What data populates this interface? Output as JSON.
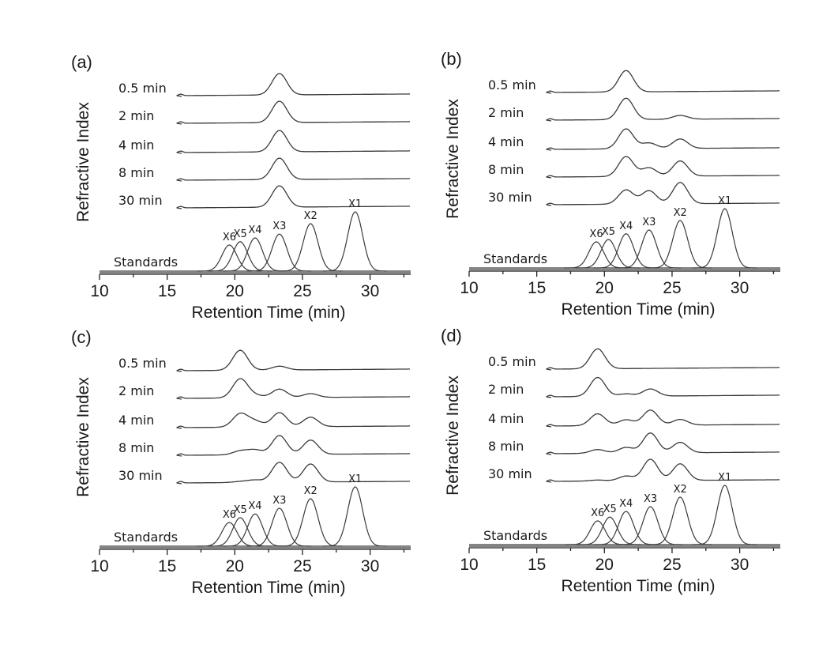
{
  "figure": {
    "panels": [
      "(a)",
      "(b)",
      "(c)",
      "(d)"
    ]
  },
  "chart_data": [
    {
      "panel": "(a)",
      "type": "line",
      "xlabel": "Retention Time (min)",
      "ylabel": "Refractive Index",
      "xlim": [
        10,
        33
      ],
      "xticks": [
        10,
        15,
        20,
        25,
        30
      ],
      "peak_names": [
        "X6",
        "X5",
        "X4",
        "X3",
        "X2",
        "X1"
      ],
      "peak_positions": [
        19.6,
        20.4,
        21.5,
        23.3,
        25.6,
        28.9
      ],
      "standards_label": "Standards",
      "standards_heights": [
        0.55,
        0.62,
        0.7,
        0.78,
        1.0,
        1.25
      ],
      "series": [
        {
          "name": "0.5 min",
          "peaks": [
            0,
            0,
            0,
            0.45,
            0,
            0
          ]
        },
        {
          "name": "2 min",
          "peaks": [
            0,
            0,
            0,
            0.45,
            0,
            0
          ]
        },
        {
          "name": "4 min",
          "peaks": [
            0,
            0,
            0,
            0.45,
            0,
            0
          ]
        },
        {
          "name": "8 min",
          "peaks": [
            0,
            0,
            0,
            0.45,
            0,
            0
          ]
        },
        {
          "name": "30 min",
          "peaks": [
            0,
            0,
            0,
            0.45,
            0,
            0
          ]
        }
      ]
    },
    {
      "panel": "(b)",
      "type": "line",
      "xlabel": "Retention Time (min)",
      "ylabel": "Refractive Index",
      "xlim": [
        10,
        33
      ],
      "xticks": [
        10,
        15,
        20,
        25,
        30
      ],
      "peak_names": [
        "X6",
        "X5",
        "X4",
        "X3",
        "X2",
        "X1"
      ],
      "peak_positions": [
        19.4,
        20.3,
        21.6,
        23.3,
        25.6,
        28.9
      ],
      "standards_label": "Standards",
      "standards_heights": [
        0.55,
        0.6,
        0.72,
        0.8,
        1.0,
        1.25
      ],
      "series": [
        {
          "name": "0.5 min",
          "peaks": [
            0,
            0,
            0.45,
            0,
            0,
            0
          ]
        },
        {
          "name": "2 min",
          "peaks": [
            0,
            0,
            0.45,
            0,
            0.08,
            0
          ]
        },
        {
          "name": "4 min",
          "peaks": [
            0,
            0,
            0.42,
            0.12,
            0.2,
            0
          ]
        },
        {
          "name": "8 min",
          "peaks": [
            0,
            0,
            0.42,
            0.18,
            0.32,
            0
          ]
        },
        {
          "name": "30 min",
          "peaks": [
            0,
            0,
            0.3,
            0.28,
            0.45,
            0
          ]
        }
      ]
    },
    {
      "panel": "(c)",
      "type": "line",
      "xlabel": "Retention Time (min)",
      "ylabel": "Refractive Index",
      "xlim": [
        10,
        33
      ],
      "xticks": [
        10,
        15,
        20,
        25,
        30
      ],
      "peak_names": [
        "X6",
        "X5",
        "X4",
        "X3",
        "X2",
        "X1"
      ],
      "peak_positions": [
        19.6,
        20.4,
        21.5,
        23.3,
        25.6,
        28.9
      ],
      "standards_label": "Standards",
      "standards_heights": [
        0.5,
        0.6,
        0.68,
        0.8,
        1.0,
        1.25
      ],
      "series": [
        {
          "name": "0.5 min",
          "peaks": [
            0,
            0.42,
            0,
            0.08,
            0,
            0
          ]
        },
        {
          "name": "2 min",
          "peaks": [
            0,
            0.4,
            0.05,
            0.18,
            0.08,
            0
          ]
        },
        {
          "name": "4 min",
          "peaks": [
            0,
            0.28,
            0.12,
            0.3,
            0.2,
            0
          ]
        },
        {
          "name": "8 min",
          "peaks": [
            0,
            0.08,
            0.1,
            0.4,
            0.3,
            0
          ]
        },
        {
          "name": "30 min",
          "peaks": [
            0,
            0.02,
            0.05,
            0.42,
            0.38,
            0
          ]
        }
      ]
    },
    {
      "panel": "(d)",
      "type": "line",
      "xlabel": "Retention Time (min)",
      "ylabel": "Refractive Index",
      "xlim": [
        10,
        33
      ],
      "xticks": [
        10,
        15,
        20,
        25,
        30
      ],
      "peak_names": [
        "X6",
        "X5",
        "X4",
        "X3",
        "X2",
        "X1"
      ],
      "peak_positions": [
        19.5,
        20.4,
        21.6,
        23.4,
        25.6,
        28.9
      ],
      "standards_label": "Standards",
      "standards_heights": [
        0.5,
        0.58,
        0.7,
        0.8,
        1.0,
        1.25
      ],
      "series": [
        {
          "name": "0.5 min",
          "peaks": [
            0.42,
            0,
            0,
            0,
            0,
            0
          ]
        },
        {
          "name": "2 min",
          "peaks": [
            0.4,
            0,
            0.05,
            0.15,
            0,
            0
          ]
        },
        {
          "name": "4 min",
          "peaks": [
            0.25,
            0,
            0.12,
            0.32,
            0.12,
            0
          ]
        },
        {
          "name": "8 min",
          "peaks": [
            0.08,
            0,
            0.12,
            0.42,
            0.22,
            0
          ]
        },
        {
          "name": "30 min",
          "peaks": [
            0.02,
            0,
            0.1,
            0.45,
            0.35,
            0
          ]
        }
      ]
    }
  ]
}
